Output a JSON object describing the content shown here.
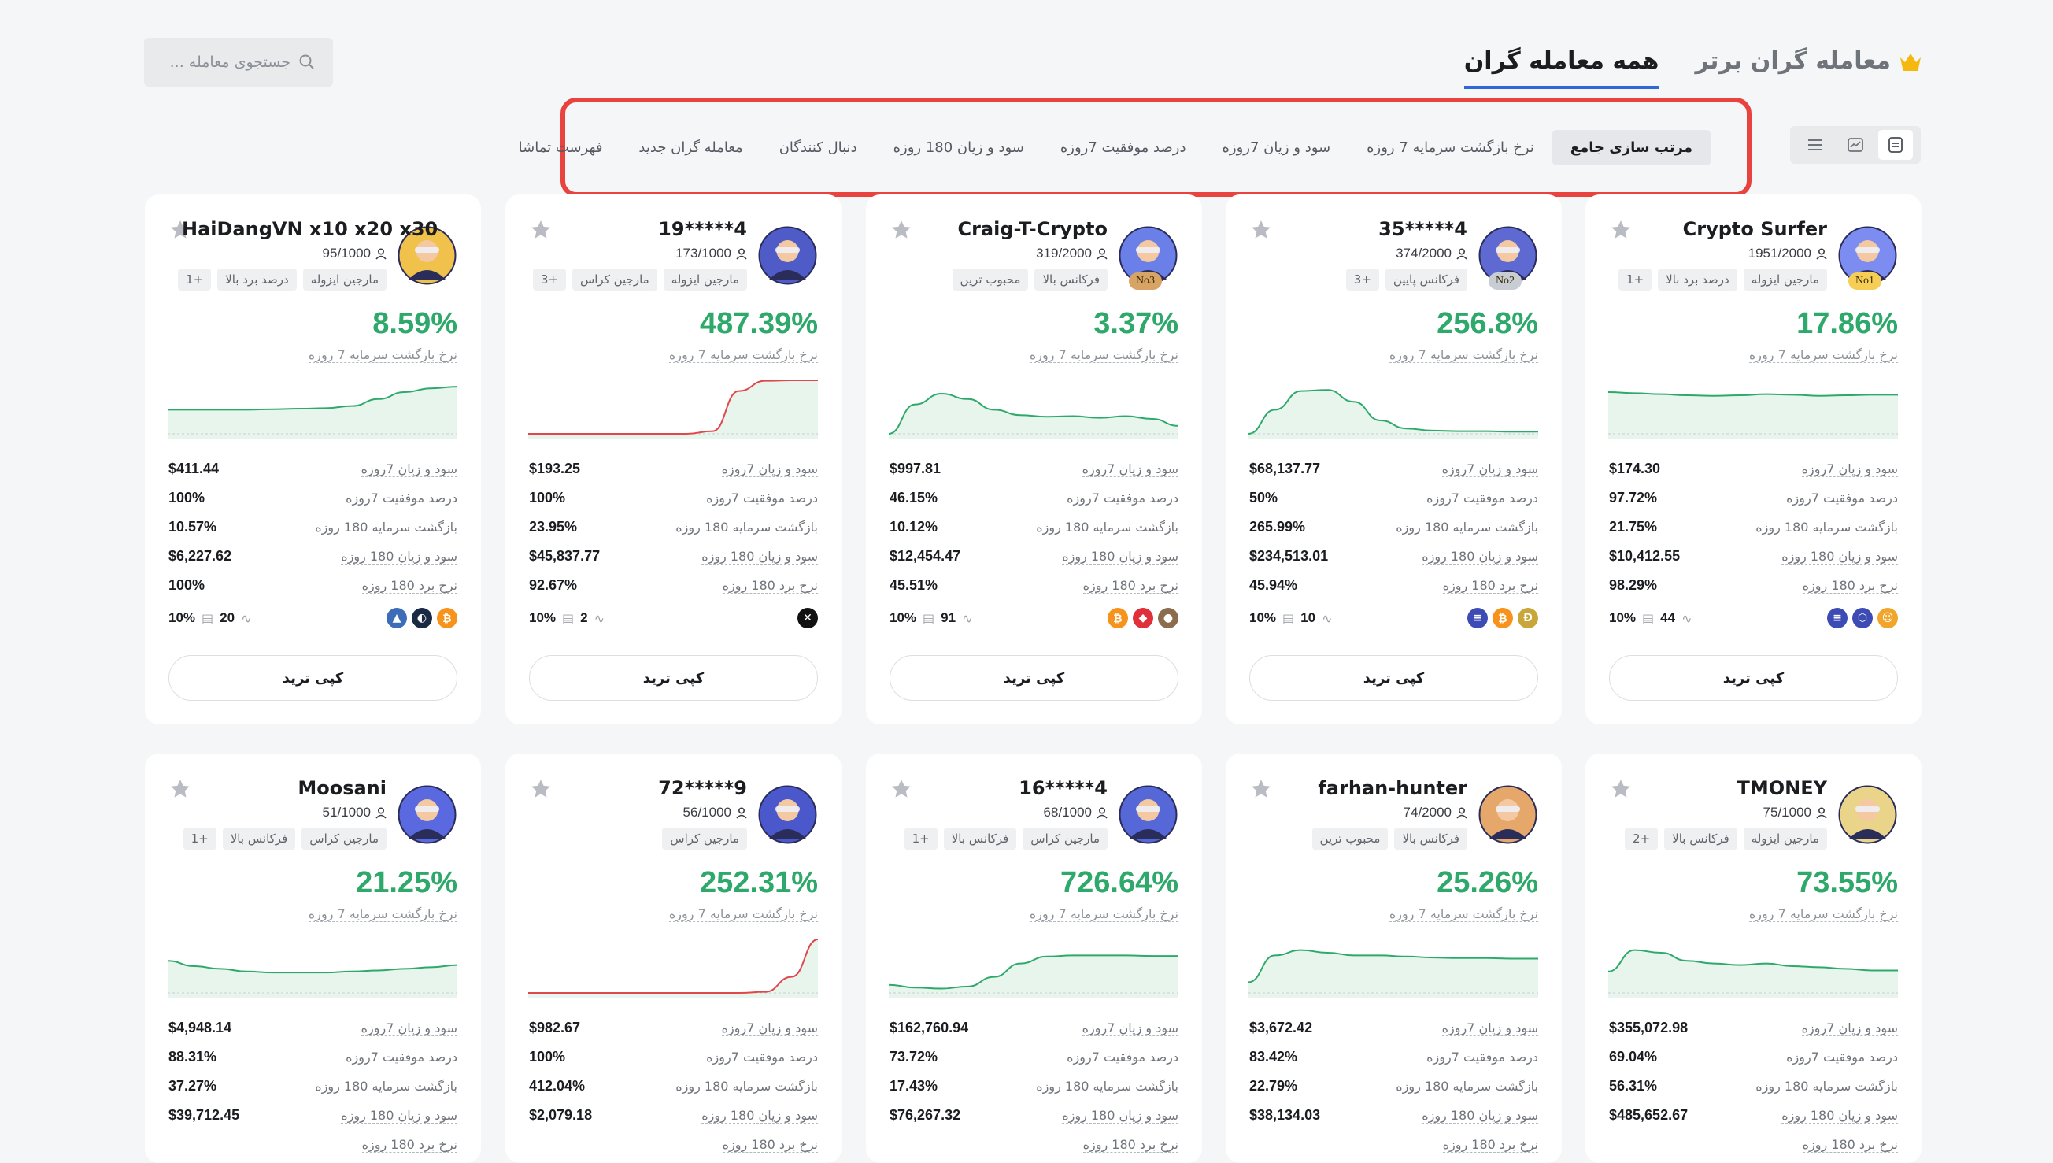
{
  "header": {
    "search_placeholder": "جستجوی معامله ...",
    "tabs": [
      {
        "label": "معامله گران برتر",
        "active": false
      },
      {
        "label": "همه معامله گران",
        "active": true
      }
    ]
  },
  "sort_options": [
    {
      "label": "مرتب سازی جامع",
      "active": true
    },
    {
      "label": "نرخ بازگشت سرمایه 7 روزه",
      "active": false
    },
    {
      "label": "سود و زیان 7روزه",
      "active": false
    },
    {
      "label": "درصد موفقیت 7روزه",
      "active": false
    },
    {
      "label": "سود و زیان 180 روزه",
      "active": false
    },
    {
      "label": "دنبال کنندگان",
      "active": false
    },
    {
      "label": "معامله گران جدید",
      "active": false
    },
    {
      "label": "فهرست تماشا",
      "active": false
    }
  ],
  "labels": {
    "roi_label": "نرخ بازگشت سرمایه 7 روزه",
    "stat_keys": [
      "سود و زیان 7روزه",
      "درصد موفقیت 7روزه",
      "بازگشت سرمایه 180 روزه",
      "سود و زیان 180 روزه",
      "نرخ برد 180 روزه"
    ],
    "copy_button": "کپی ترید"
  },
  "colors": {
    "positive": "#2fa96b",
    "negative": "#e0474c",
    "accent": "#3366d6"
  },
  "traders": [
    {
      "name": "Crypto Surfer",
      "followers": "1951/2000",
      "rank": "No1",
      "tags": [
        "مارجین ایزوله",
        "درصد برد بالا",
        "+1"
      ],
      "roi": "17.86%",
      "stats": [
        "$174.30",
        "97.72%",
        "21.75%",
        "$10,412.55",
        "98.29%"
      ],
      "share": "10%",
      "trades": "44",
      "coins": [
        "meme",
        "hex",
        "eth"
      ],
      "spark": [
        0.78,
        0.76,
        0.74,
        0.72,
        0.71,
        0.72,
        0.74,
        0.73,
        0.71,
        0.72,
        0.73,
        0.73
      ]
    },
    {
      "name": "35*****4",
      "followers": "374/2000",
      "rank": "No2",
      "tags": [
        "فرکانس پایین",
        "+3"
      ],
      "roi": "256.8%",
      "stats": [
        "$68,137.77",
        "50%",
        "265.99%",
        "$234,513.01",
        "45.94%"
      ],
      "share": "10%",
      "trades": "10",
      "coins": [
        "doge",
        "btc",
        "eth"
      ],
      "spark": [
        0.0,
        0.45,
        0.8,
        0.82,
        0.6,
        0.25,
        0.1,
        0.06,
        0.05,
        0.05,
        0.04,
        0.04
      ]
    },
    {
      "name": "Craig-T-Crypto",
      "followers": "319/2000",
      "rank": "No3",
      "tags": [
        "فرکانس بالا",
        "محبوب ترین"
      ],
      "roi": "3.37%",
      "stats": [
        "$997.81",
        "46.15%",
        "10.12%",
        "$12,454.47",
        "45.51%"
      ],
      "share": "10%",
      "trades": "91",
      "coins": [
        "animal",
        "redstone",
        "btc"
      ],
      "spark": [
        0.0,
        0.55,
        0.75,
        0.65,
        0.45,
        0.35,
        0.32,
        0.33,
        0.3,
        0.33,
        0.28,
        0.15
      ]
    },
    {
      "name": "19*****4",
      "followers": "173/1000",
      "rank": "",
      "tags": [
        "مارجین ایزوله",
        "مارجین کراس",
        "+3"
      ],
      "roi": "487.39%",
      "stats": [
        "$193.25",
        "100%",
        "23.95%",
        "$45,837.77",
        "92.67%"
      ],
      "share": "10%",
      "trades": "2",
      "coins": [
        "x"
      ],
      "spark": [
        0.0,
        0.0,
        0.0,
        0.0,
        0.0,
        0.0,
        0.0,
        0.05,
        0.8,
        0.99,
        1.0,
        1.0
      ]
    },
    {
      "name": "HaiDangVN x10 x20 x30",
      "followers": "95/1000",
      "rank": "",
      "tags": [
        "مارجین ایزوله",
        "درصد برد بالا",
        "+1"
      ],
      "roi": "8.59%",
      "stats": [
        "$411.44",
        "100%",
        "10.57%",
        "$6,227.62",
        "100%"
      ],
      "share": "10%",
      "trades": "20",
      "coins": [
        "btc",
        "dark",
        "hawk"
      ],
      "spark": [
        0.45,
        0.45,
        0.45,
        0.45,
        0.46,
        0.47,
        0.48,
        0.52,
        0.65,
        0.78,
        0.85,
        0.88
      ]
    },
    {
      "name": "TMONEY",
      "followers": "75/1000",
      "rank": "",
      "tags": [
        "مارجین ایزوله",
        "فرکانس بالا",
        "+2"
      ],
      "roi": "73.55%",
      "stats": [
        "$355,072.98",
        "69.04%",
        "56.31%",
        "$485,652.67",
        ""
      ],
      "share": "",
      "trades": "",
      "coins": [],
      "spark": [
        0.4,
        0.8,
        0.75,
        0.6,
        0.55,
        0.52,
        0.55,
        0.5,
        0.48,
        0.45,
        0.42,
        0.42
      ]
    },
    {
      "name": "farhan-hunter",
      "followers": "74/2000",
      "rank": "",
      "tags": [
        "فرکانس بالا",
        "محبوب ترین"
      ],
      "roi": "25.26%",
      "stats": [
        "$3,672.42",
        "83.42%",
        "22.79%",
        "$38,134.03",
        ""
      ],
      "share": "",
      "trades": "",
      "coins": [],
      "spark": [
        0.2,
        0.7,
        0.8,
        0.75,
        0.7,
        0.7,
        0.68,
        0.66,
        0.65,
        0.65,
        0.64,
        0.64
      ]
    },
    {
      "name": "16*****4",
      "followers": "68/1000",
      "rank": "",
      "tags": [
        "مارجین کراس",
        "فرکانس بالا",
        "+1"
      ],
      "roi": "726.64%",
      "stats": [
        "$162,760.94",
        "73.72%",
        "17.43%",
        "$76,267.32",
        ""
      ],
      "share": "",
      "trades": "",
      "coins": [],
      "spark": [
        0.15,
        0.1,
        0.08,
        0.12,
        0.3,
        0.55,
        0.68,
        0.7,
        0.7,
        0.7,
        0.69,
        0.69
      ]
    },
    {
      "name": "72*****9",
      "followers": "56/1000",
      "rank": "",
      "tags": [
        "مارجین کراس"
      ],
      "roi": "252.31%",
      "stats": [
        "$982.67",
        "100%",
        "412.04%",
        "$2,079.18",
        ""
      ],
      "share": "",
      "trades": "",
      "coins": [],
      "spark": [
        0.0,
        0.0,
        0.0,
        0.0,
        0.0,
        0.0,
        0.0,
        0.0,
        0.0,
        0.02,
        0.3,
        1.0
      ]
    },
    {
      "name": "Moosani",
      "followers": "51/1000",
      "rank": "",
      "tags": [
        "مارجین کراس",
        "فرکانس بالا",
        "+1"
      ],
      "roi": "21.25%",
      "stats": [
        "$4,948.14",
        "88.31%",
        "37.27%",
        "$39,712.45",
        ""
      ],
      "share": "",
      "trades": "",
      "coins": [],
      "spark": [
        0.6,
        0.5,
        0.45,
        0.4,
        0.38,
        0.38,
        0.38,
        0.4,
        0.42,
        0.45,
        0.48,
        0.52
      ]
    }
  ]
}
